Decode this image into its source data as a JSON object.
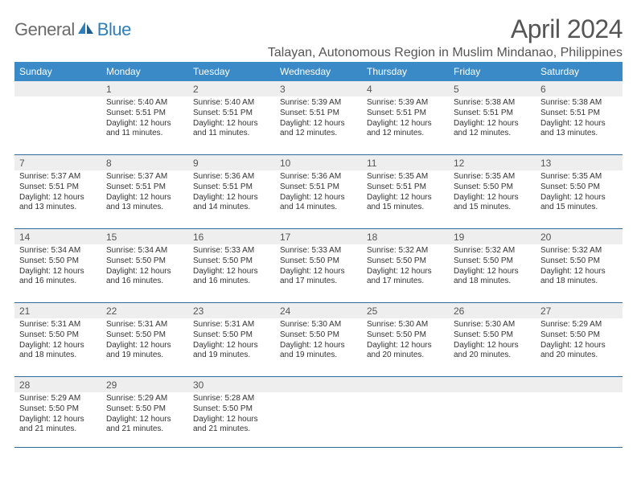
{
  "logo": {
    "text1": "General",
    "text2": "Blue"
  },
  "header": {
    "month_title": "April 2024",
    "location": "Talayan, Autonomous Region in Muslim Mindanao, Philippines"
  },
  "colors": {
    "header_bg": "#3a8ac7",
    "header_text": "#ffffff",
    "day_num_bg": "#eeeeee",
    "border": "#2f6a99",
    "title_color": "#555555",
    "body_text": "#333333",
    "logo_gray": "#6b6b6b",
    "logo_blue": "#2f7fb8"
  },
  "day_labels": [
    "Sunday",
    "Monday",
    "Tuesday",
    "Wednesday",
    "Thursday",
    "Friday",
    "Saturday"
  ],
  "weeks": [
    [
      {
        "blank": true
      },
      {
        "num": "1",
        "sunrise": "Sunrise: 5:40 AM",
        "sunset": "Sunset: 5:51 PM",
        "daylight1": "Daylight: 12 hours",
        "daylight2": "and 11 minutes."
      },
      {
        "num": "2",
        "sunrise": "Sunrise: 5:40 AM",
        "sunset": "Sunset: 5:51 PM",
        "daylight1": "Daylight: 12 hours",
        "daylight2": "and 11 minutes."
      },
      {
        "num": "3",
        "sunrise": "Sunrise: 5:39 AM",
        "sunset": "Sunset: 5:51 PM",
        "daylight1": "Daylight: 12 hours",
        "daylight2": "and 12 minutes."
      },
      {
        "num": "4",
        "sunrise": "Sunrise: 5:39 AM",
        "sunset": "Sunset: 5:51 PM",
        "daylight1": "Daylight: 12 hours",
        "daylight2": "and 12 minutes."
      },
      {
        "num": "5",
        "sunrise": "Sunrise: 5:38 AM",
        "sunset": "Sunset: 5:51 PM",
        "daylight1": "Daylight: 12 hours",
        "daylight2": "and 12 minutes."
      },
      {
        "num": "6",
        "sunrise": "Sunrise: 5:38 AM",
        "sunset": "Sunset: 5:51 PM",
        "daylight1": "Daylight: 12 hours",
        "daylight2": "and 13 minutes."
      }
    ],
    [
      {
        "num": "7",
        "sunrise": "Sunrise: 5:37 AM",
        "sunset": "Sunset: 5:51 PM",
        "daylight1": "Daylight: 12 hours",
        "daylight2": "and 13 minutes."
      },
      {
        "num": "8",
        "sunrise": "Sunrise: 5:37 AM",
        "sunset": "Sunset: 5:51 PM",
        "daylight1": "Daylight: 12 hours",
        "daylight2": "and 13 minutes."
      },
      {
        "num": "9",
        "sunrise": "Sunrise: 5:36 AM",
        "sunset": "Sunset: 5:51 PM",
        "daylight1": "Daylight: 12 hours",
        "daylight2": "and 14 minutes."
      },
      {
        "num": "10",
        "sunrise": "Sunrise: 5:36 AM",
        "sunset": "Sunset: 5:51 PM",
        "daylight1": "Daylight: 12 hours",
        "daylight2": "and 14 minutes."
      },
      {
        "num": "11",
        "sunrise": "Sunrise: 5:35 AM",
        "sunset": "Sunset: 5:51 PM",
        "daylight1": "Daylight: 12 hours",
        "daylight2": "and 15 minutes."
      },
      {
        "num": "12",
        "sunrise": "Sunrise: 5:35 AM",
        "sunset": "Sunset: 5:50 PM",
        "daylight1": "Daylight: 12 hours",
        "daylight2": "and 15 minutes."
      },
      {
        "num": "13",
        "sunrise": "Sunrise: 5:35 AM",
        "sunset": "Sunset: 5:50 PM",
        "daylight1": "Daylight: 12 hours",
        "daylight2": "and 15 minutes."
      }
    ],
    [
      {
        "num": "14",
        "sunrise": "Sunrise: 5:34 AM",
        "sunset": "Sunset: 5:50 PM",
        "daylight1": "Daylight: 12 hours",
        "daylight2": "and 16 minutes."
      },
      {
        "num": "15",
        "sunrise": "Sunrise: 5:34 AM",
        "sunset": "Sunset: 5:50 PM",
        "daylight1": "Daylight: 12 hours",
        "daylight2": "and 16 minutes."
      },
      {
        "num": "16",
        "sunrise": "Sunrise: 5:33 AM",
        "sunset": "Sunset: 5:50 PM",
        "daylight1": "Daylight: 12 hours",
        "daylight2": "and 16 minutes."
      },
      {
        "num": "17",
        "sunrise": "Sunrise: 5:33 AM",
        "sunset": "Sunset: 5:50 PM",
        "daylight1": "Daylight: 12 hours",
        "daylight2": "and 17 minutes."
      },
      {
        "num": "18",
        "sunrise": "Sunrise: 5:32 AM",
        "sunset": "Sunset: 5:50 PM",
        "daylight1": "Daylight: 12 hours",
        "daylight2": "and 17 minutes."
      },
      {
        "num": "19",
        "sunrise": "Sunrise: 5:32 AM",
        "sunset": "Sunset: 5:50 PM",
        "daylight1": "Daylight: 12 hours",
        "daylight2": "and 18 minutes."
      },
      {
        "num": "20",
        "sunrise": "Sunrise: 5:32 AM",
        "sunset": "Sunset: 5:50 PM",
        "daylight1": "Daylight: 12 hours",
        "daylight2": "and 18 minutes."
      }
    ],
    [
      {
        "num": "21",
        "sunrise": "Sunrise: 5:31 AM",
        "sunset": "Sunset: 5:50 PM",
        "daylight1": "Daylight: 12 hours",
        "daylight2": "and 18 minutes."
      },
      {
        "num": "22",
        "sunrise": "Sunrise: 5:31 AM",
        "sunset": "Sunset: 5:50 PM",
        "daylight1": "Daylight: 12 hours",
        "daylight2": "and 19 minutes."
      },
      {
        "num": "23",
        "sunrise": "Sunrise: 5:31 AM",
        "sunset": "Sunset: 5:50 PM",
        "daylight1": "Daylight: 12 hours",
        "daylight2": "and 19 minutes."
      },
      {
        "num": "24",
        "sunrise": "Sunrise: 5:30 AM",
        "sunset": "Sunset: 5:50 PM",
        "daylight1": "Daylight: 12 hours",
        "daylight2": "and 19 minutes."
      },
      {
        "num": "25",
        "sunrise": "Sunrise: 5:30 AM",
        "sunset": "Sunset: 5:50 PM",
        "daylight1": "Daylight: 12 hours",
        "daylight2": "and 20 minutes."
      },
      {
        "num": "26",
        "sunrise": "Sunrise: 5:30 AM",
        "sunset": "Sunset: 5:50 PM",
        "daylight1": "Daylight: 12 hours",
        "daylight2": "and 20 minutes."
      },
      {
        "num": "27",
        "sunrise": "Sunrise: 5:29 AM",
        "sunset": "Sunset: 5:50 PM",
        "daylight1": "Daylight: 12 hours",
        "daylight2": "and 20 minutes."
      }
    ],
    [
      {
        "num": "28",
        "sunrise": "Sunrise: 5:29 AM",
        "sunset": "Sunset: 5:50 PM",
        "daylight1": "Daylight: 12 hours",
        "daylight2": "and 21 minutes."
      },
      {
        "num": "29",
        "sunrise": "Sunrise: 5:29 AM",
        "sunset": "Sunset: 5:50 PM",
        "daylight1": "Daylight: 12 hours",
        "daylight2": "and 21 minutes."
      },
      {
        "num": "30",
        "sunrise": "Sunrise: 5:28 AM",
        "sunset": "Sunset: 5:50 PM",
        "daylight1": "Daylight: 12 hours",
        "daylight2": "and 21 minutes."
      },
      {
        "blank": true
      },
      {
        "blank": true
      },
      {
        "blank": true
      },
      {
        "blank": true
      }
    ]
  ]
}
